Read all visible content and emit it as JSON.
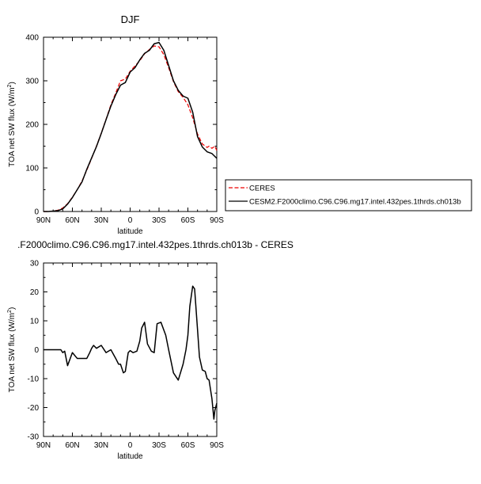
{
  "chart_data": [
    {
      "type": "line",
      "title": "DJF",
      "xlabel": "latitude",
      "ylabel": "TOA net SW flux (W/m²)",
      "ylabel_base": "TOA net SW flux (W/m",
      "ylabel_sup": "2",
      "ylabel_tail": ")",
      "xlim": [
        90,
        -90
      ],
      "ylim": [
        0,
        400
      ],
      "xticks": [
        90,
        60,
        30,
        0,
        -30,
        -60,
        -90
      ],
      "xtick_labels": [
        "90N",
        "60N",
        "30N",
        "0",
        "30S",
        "60S",
        "90S"
      ],
      "yticks": [
        0,
        100,
        200,
        300,
        400
      ],
      "ytick_labels": [
        "0",
        "100",
        "200",
        "300",
        "400"
      ],
      "legend_position": "right",
      "series": [
        {
          "name": "CERES",
          "style": "dashed",
          "color": "#ee0000",
          "x": [
            90,
            85,
            80,
            75,
            70,
            65,
            60,
            55,
            50,
            45,
            40,
            35,
            30,
            25,
            20,
            15,
            10,
            5,
            0,
            -5,
            -10,
            -15,
            -20,
            -25,
            -30,
            -35,
            -40,
            -45,
            -50,
            -55,
            -60,
            -65,
            -70,
            -75,
            -80,
            -82,
            -85,
            -88,
            -90
          ],
          "y": [
            0,
            0,
            1,
            3,
            8,
            18,
            33,
            50,
            70,
            95,
            122,
            150,
            180,
            212,
            245,
            272,
            300,
            304,
            322,
            334,
            346,
            362,
            372,
            380,
            378,
            360,
            330,
            298,
            275,
            262,
            245,
            215,
            178,
            155,
            147,
            150,
            145,
            150,
            140
          ]
        },
        {
          "name": "CESM2.F2000climo.C96.C96.mg17.intel.432pes.1thrds.ch013b",
          "style": "solid",
          "color": "#000000",
          "x": [
            90,
            85,
            80,
            75,
            70,
            65,
            60,
            55,
            50,
            45,
            40,
            35,
            30,
            25,
            20,
            15,
            10,
            5,
            0,
            -5,
            -10,
            -15,
            -20,
            -25,
            -30,
            -35,
            -40,
            -45,
            -50,
            -55,
            -60,
            -65,
            -70,
            -75,
            -80,
            -85,
            -90
          ],
          "y": [
            0,
            0,
            1,
            2,
            6,
            17,
            32,
            50,
            68,
            97,
            123,
            149,
            179,
            211,
            242,
            268,
            290,
            296,
            320,
            330,
            348,
            363,
            370,
            385,
            388,
            370,
            335,
            300,
            278,
            265,
            260,
            228,
            172,
            148,
            137,
            133,
            122
          ]
        }
      ]
    },
    {
      "type": "line",
      "title": ".F2000climo.C96.C96.mg17.intel.432pes.1thrds.ch013b - CERES",
      "xlabel": "latitude",
      "ylabel": "TOA net SW flux (W/m²)",
      "ylabel_base": "TOA net SW flux (W/m",
      "ylabel_sup": "2",
      "ylabel_tail": ")",
      "xlim": [
        90,
        -90
      ],
      "ylim": [
        -30,
        30
      ],
      "xticks": [
        90,
        60,
        30,
        0,
        -30,
        -60,
        -90
      ],
      "xtick_labels": [
        "90N",
        "60N",
        "30N",
        "0",
        "30S",
        "60S",
        "90S"
      ],
      "yticks": [
        -30,
        -20,
        -10,
        0,
        10,
        20,
        30
      ],
      "ytick_labels": [
        "-30",
        "-20",
        "-10",
        "0",
        "10",
        "20",
        "30"
      ],
      "series": [
        {
          "style": "solid",
          "color": "#000000",
          "x": [
            90,
            80,
            75,
            72,
            70,
            68,
            65,
            60,
            55,
            50,
            45,
            42,
            40,
            38,
            35,
            30,
            25,
            20,
            15,
            12,
            10,
            7,
            5,
            2,
            0,
            -3,
            -7,
            -10,
            -12,
            -15,
            -18,
            -22,
            -25,
            -28,
            -32,
            -37,
            -40,
            -45,
            -48,
            -50,
            -55,
            -58,
            -60,
            -62,
            -65,
            -67,
            -70,
            -72,
            -75,
            -78,
            -80,
            -82,
            -85,
            -87,
            -88,
            -90
          ],
          "y": [
            0,
            0,
            0,
            0,
            -1,
            -0.5,
            -5.5,
            -1,
            -3,
            -3,
            -3,
            -1,
            0.5,
            1.5,
            0.5,
            1.5,
            -1,
            0,
            -3,
            -5,
            -5,
            -8,
            -7.5,
            -1,
            -0.3,
            -1,
            -0.5,
            3,
            7.5,
            9.5,
            2,
            -0.5,
            -1,
            9,
            9.5,
            5,
            0,
            -8,
            -9.5,
            -10.5,
            -5,
            0,
            5,
            15,
            22,
            21,
            7,
            -2.5,
            -7,
            -7.5,
            -10,
            -10.5,
            -17,
            -24,
            -21,
            -18.5
          ]
        }
      ]
    }
  ]
}
